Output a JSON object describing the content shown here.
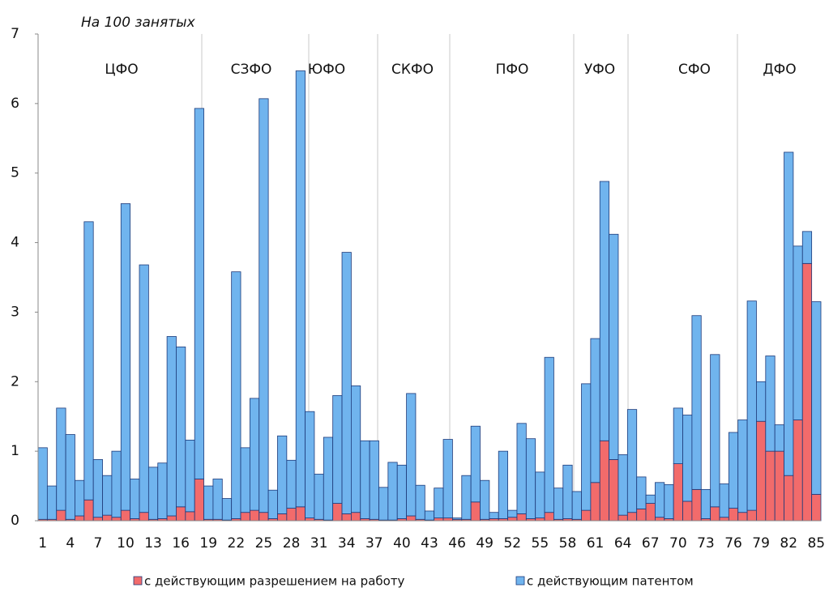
{
  "chart_data": {
    "type": "stacked_bar",
    "title": "На 100 занятых",
    "categories": [
      1,
      null,
      null,
      4,
      null,
      null,
      7,
      null,
      null,
      10,
      null,
      null,
      13,
      null,
      null,
      16,
      null,
      null,
      19,
      null,
      null,
      22,
      null,
      null,
      25,
      null,
      null,
      28,
      null,
      null,
      31,
      null,
      null,
      34,
      null,
      null,
      37,
      null,
      null,
      40,
      null,
      null,
      43,
      null,
      null,
      46,
      null,
      null,
      49,
      null,
      null,
      52,
      null,
      null,
      55,
      null,
      null,
      58,
      null,
      null,
      61,
      null,
      null,
      64,
      null,
      null,
      67,
      null,
      null,
      70,
      null,
      null,
      73,
      null,
      null,
      76,
      null,
      null,
      79,
      null,
      null,
      82,
      null,
      null,
      85
    ],
    "series": [
      {
        "name": "с действующим разрешением на работу",
        "color": "#f26b6b",
        "values": [
          0.02,
          0.02,
          0.15,
          0.02,
          0.07,
          0.3,
          0.05,
          0.08,
          0.05,
          0.15,
          0.03,
          0.12,
          0.02,
          0.03,
          0.07,
          0.2,
          0.13,
          0.6,
          0.02,
          0.02,
          0.01,
          0.03,
          0.12,
          0.15,
          0.12,
          0.03,
          0.1,
          0.18,
          0.2,
          0.04,
          0.02,
          0.01,
          0.25,
          0.1,
          0.12,
          0.03,
          0.02,
          0.01,
          0.01,
          0.03,
          0.07,
          0.02,
          0.01,
          0.04,
          0.04,
          0.02,
          0.02,
          0.27,
          0.02,
          0.03,
          0.03,
          0.05,
          0.1,
          0.03,
          0.04,
          0.12,
          0.02,
          0.03,
          0.02,
          0.15,
          0.55,
          1.15,
          0.88,
          0.08,
          0.12,
          0.17,
          0.25,
          0.05,
          0.03,
          0.82,
          0.28,
          0.45,
          0.03,
          0.2,
          0.05,
          0.18,
          0.12,
          0.15,
          1.43,
          1.0,
          1.0,
          0.65,
          1.45,
          3.7,
          0.38
        ]
      },
      {
        "name": "с действующим патентом",
        "color": "#70b4ee",
        "values": [
          1.03,
          0.48,
          1.47,
          1.22,
          0.51,
          4.0,
          0.83,
          0.57,
          0.95,
          4.41,
          0.57,
          3.56,
          0.75,
          0.8,
          2.58,
          2.3,
          1.03,
          5.33,
          0.48,
          0.58,
          0.31,
          3.55,
          0.93,
          1.61,
          5.95,
          0.41,
          1.12,
          0.69,
          6.27,
          1.53,
          0.65,
          1.19,
          1.55,
          3.76,
          1.82,
          1.12,
          1.13,
          0.47,
          0.83,
          0.77,
          1.76,
          0.49,
          0.13,
          0.43,
          1.13,
          0.02,
          0.63,
          1.09,
          0.56,
          0.09,
          0.97,
          0.1,
          1.3,
          1.15,
          0.66,
          2.23,
          0.45,
          0.77,
          0.4,
          1.82,
          2.07,
          3.73,
          3.24,
          0.87,
          1.48,
          0.46,
          0.12,
          0.5,
          0.49,
          0.8,
          1.24,
          2.5,
          0.42,
          2.19,
          0.48,
          1.09,
          1.33,
          3.01,
          0.57,
          1.37,
          0.38,
          4.65,
          2.5,
          0.46,
          2.77
        ]
      }
    ],
    "regions": [
      "ЦФО",
      "СЗФО",
      "ЮФО",
      "СКФО",
      "ПФО",
      "УФО",
      "СФО",
      "ДФО"
    ],
    "ylim": [
      0,
      7
    ],
    "yticks": [
      0,
      1,
      2,
      3,
      4,
      5,
      6,
      7
    ],
    "legend": "bottom"
  }
}
